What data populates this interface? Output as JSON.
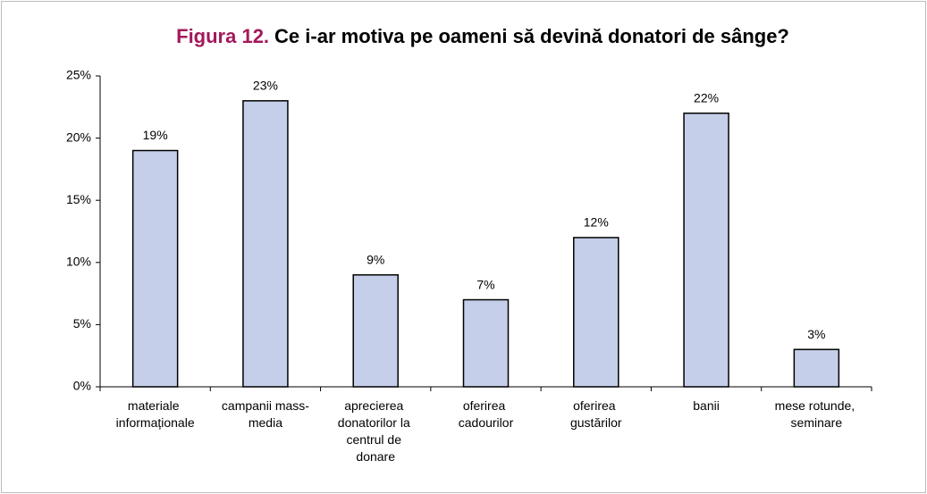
{
  "chart_data": {
    "type": "bar",
    "title_label": "Figura 12.",
    "title": "Ce i-ar motiva pe oameni să devină donatori de sânge?",
    "categories": [
      "materiale informaționale",
      "campanii mass-media",
      "aprecierea donatorilor la centrul de donare",
      "oferirea cadourilor",
      "oferirea gustărilor",
      "banii",
      "mese rotunde, seminare"
    ],
    "values": [
      19,
      23,
      9,
      7,
      12,
      22,
      3
    ],
    "value_labels": [
      "19%",
      "23%",
      "9%",
      "7%",
      "12%",
      "22%",
      "3%"
    ],
    "color": "#c5cfe9",
    "ylim": [
      0,
      25
    ],
    "yticks": [
      {
        "value": 0,
        "label": "0%"
      },
      {
        "value": 5,
        "label": "5%"
      },
      {
        "value": 10,
        "label": "10%"
      },
      {
        "value": 15,
        "label": "15%"
      },
      {
        "value": 20,
        "label": "20%"
      },
      {
        "value": 25,
        "label": "25%"
      }
    ],
    "grid": false
  }
}
